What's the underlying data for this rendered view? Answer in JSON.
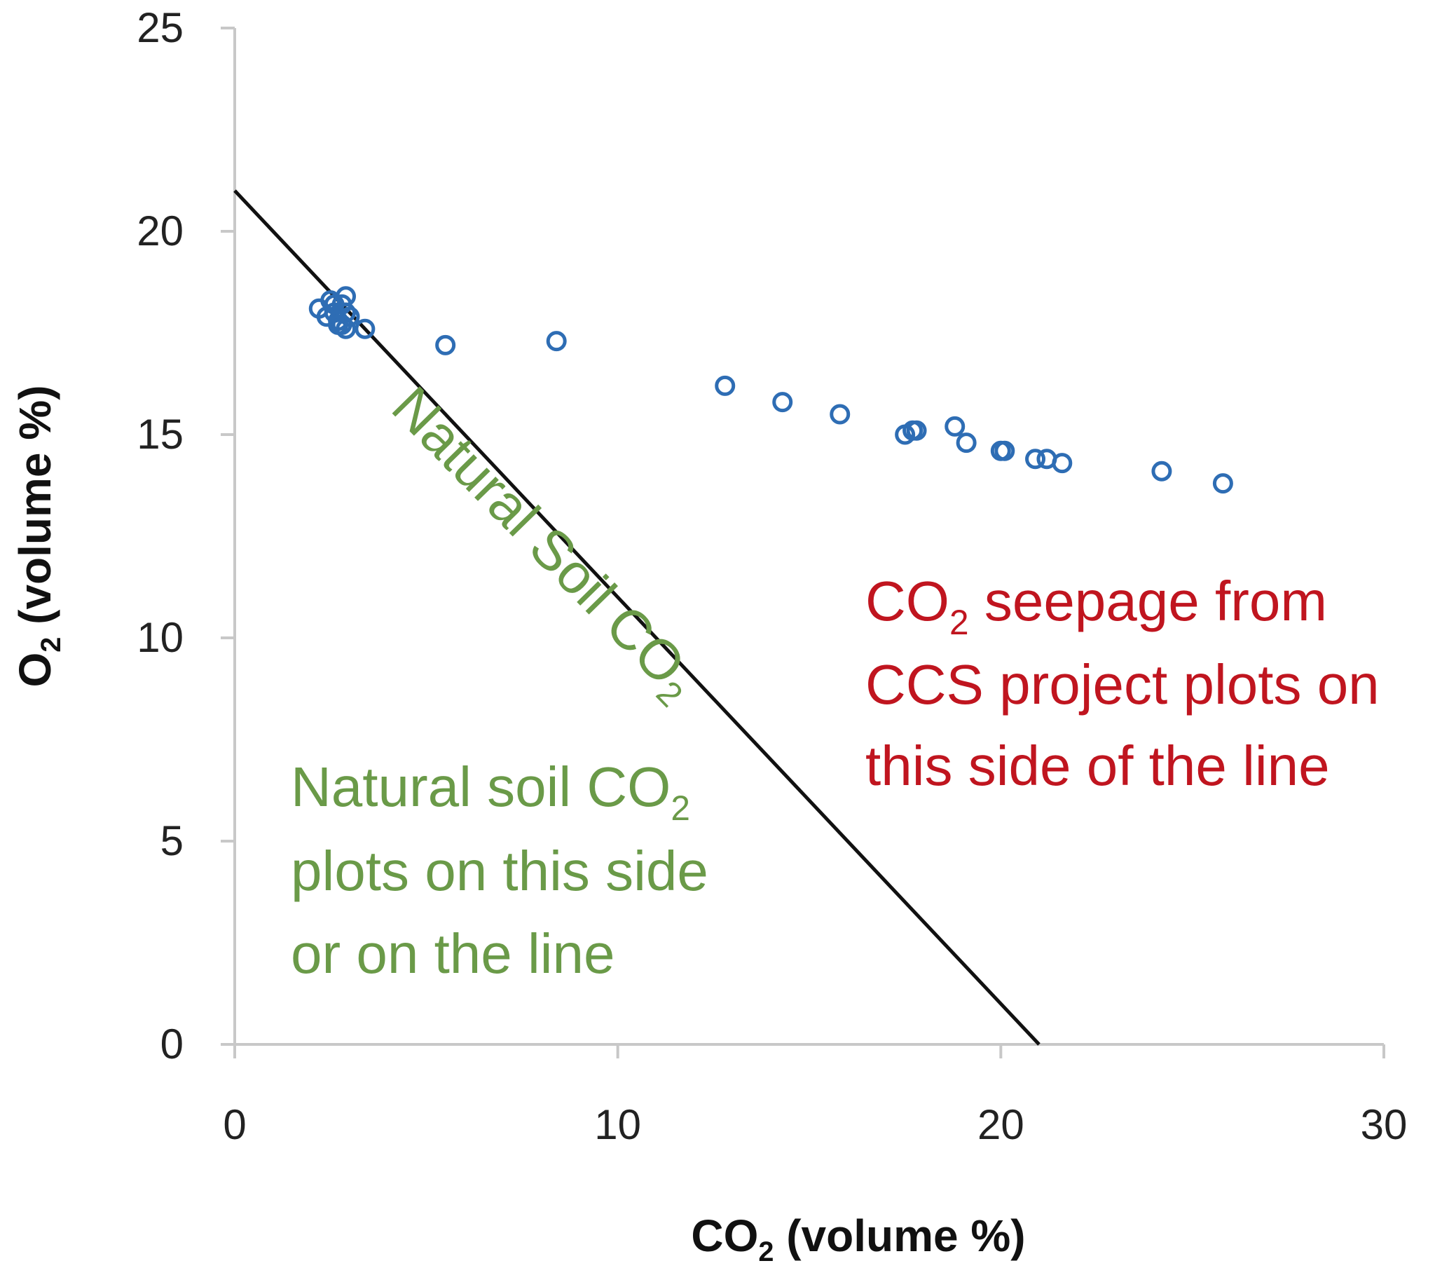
{
  "chart_data": {
    "type": "scatter",
    "xlabel": {
      "main": "CO",
      "sub": "2",
      "rest": " (volume %)"
    },
    "ylabel": {
      "main": "O",
      "sub": "2",
      "rest": " (volume %)"
    },
    "xlim": [
      0,
      30
    ],
    "ylim": [
      0,
      25
    ],
    "xticks": [
      "0",
      "10",
      "20",
      "30"
    ],
    "yticks": [
      "0",
      "5",
      "10",
      "15",
      "20",
      "25"
    ],
    "grid": false,
    "reference_line": {
      "label_main": "Natural Soil CO",
      "label_sub": "2",
      "points": [
        [
          0,
          21
        ],
        [
          21,
          0
        ]
      ],
      "color": "#111111"
    },
    "series": [
      {
        "marker": "open-circle",
        "color": "#2e6db4",
        "x": [
          2.2,
          2.4,
          2.5,
          2.6,
          2.7,
          2.8,
          2.8,
          2.9,
          2.9,
          3.0,
          2.6,
          2.7,
          2.9,
          3.4,
          5.5,
          8.4,
          12.8,
          14.3,
          15.8,
          17.5,
          17.7,
          17.8,
          18.8,
          19.1,
          20.0,
          20.1,
          20.9,
          21.2,
          21.6,
          24.2,
          25.8
        ],
        "y": [
          18.1,
          17.9,
          18.3,
          18.0,
          17.8,
          18.2,
          17.7,
          18.4,
          17.6,
          17.9,
          18.2,
          17.7,
          18.0,
          17.6,
          17.2,
          17.3,
          16.2,
          15.8,
          15.5,
          15.0,
          15.1,
          15.1,
          15.2,
          14.8,
          14.6,
          14.6,
          14.4,
          14.4,
          14.3,
          14.1,
          13.8
        ]
      }
    ],
    "annotations": [
      {
        "id": "seepage",
        "color": "#c0151f",
        "lines": [
          {
            "main": "CO",
            "sub": "2",
            "rest": " seepage from"
          },
          {
            "main": "CCS project plots on"
          },
          {
            "main": "this side of the line"
          }
        ]
      },
      {
        "id": "natural",
        "color": "#6a9a48",
        "lines": [
          {
            "main": "Natural soil CO",
            "sub": "2"
          },
          {
            "main": "plots on this side"
          },
          {
            "main": "or on the line"
          }
        ]
      }
    ]
  }
}
